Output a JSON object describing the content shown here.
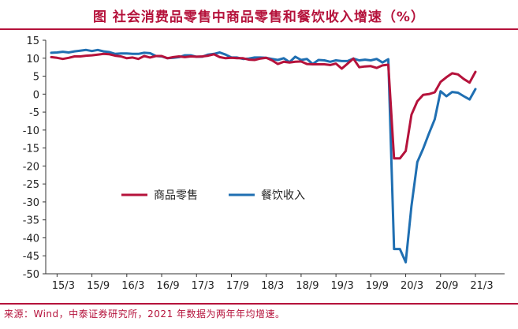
{
  "header": {
    "title": "图 社会消费品零售中商品零售和餐饮收入增速（%）"
  },
  "footer": {
    "source": "来源：Wind，中泰证券研究所，2021 年数据为两年年均增速。"
  },
  "colors": {
    "accent": "#b5123b",
    "series_goods": "#b5123b",
    "series_catering": "#1f6fb2",
    "axis": "#333333"
  },
  "chart_data": {
    "type": "line",
    "title": "图 社会消费品零售中商品零售和餐饮收入增速（%）",
    "xlabel": "",
    "ylabel": "",
    "x_tick_labels": [
      "15/3",
      "15/9",
      "16/3",
      "16/9",
      "17/3",
      "17/9",
      "18/3",
      "18/9",
      "19/3",
      "19/9",
      "20/3",
      "20/9",
      "21/3"
    ],
    "y_ticks": [
      15,
      10,
      5,
      0,
      -5,
      -10,
      -15,
      -20,
      -25,
      -30,
      -35,
      -40,
      -45,
      -50
    ],
    "ylim": [
      -50,
      15
    ],
    "grid": false,
    "legend": {
      "placement": "center-left",
      "entries": [
        "商品零售",
        "餐饮收入"
      ]
    },
    "x": [
      "15/2",
      "15/3",
      "15/4",
      "15/5",
      "15/6",
      "15/7",
      "15/8",
      "15/9",
      "15/10",
      "15/11",
      "15/12",
      "16/1",
      "16/2",
      "16/3",
      "16/4",
      "16/5",
      "16/6",
      "16/7",
      "16/8",
      "16/9",
      "16/10",
      "16/11",
      "16/12",
      "17/1",
      "17/2",
      "17/3",
      "17/4",
      "17/5",
      "17/6",
      "17/7",
      "17/8",
      "17/9",
      "17/10",
      "17/11",
      "17/12",
      "18/1",
      "18/2",
      "18/3",
      "18/4",
      "18/5",
      "18/6",
      "18/7",
      "18/8",
      "18/9",
      "18/10",
      "18/11",
      "18/12",
      "19/1",
      "19/2",
      "19/3",
      "19/4",
      "19/5",
      "19/6",
      "19/7",
      "19/8",
      "19/9",
      "19/10",
      "19/11",
      "19/12",
      "20/1",
      "20/2",
      "20/3",
      "20/4",
      "20/5",
      "20/6",
      "20/7",
      "20/8",
      "20/9",
      "20/10",
      "20/11",
      "20/12",
      "21/1",
      "21/2",
      "21/3"
    ],
    "series": [
      {
        "name": "商品零售",
        "values": [
          10.3,
          10.1,
          9.8,
          10.1,
          10.5,
          10.5,
          10.7,
          10.8,
          11.0,
          11.2,
          11.1,
          10.7,
          10.5,
          10.0,
          10.2,
          9.8,
          10.6,
          10.2,
          10.6,
          10.6,
          10.0,
          10.3,
          10.5,
          10.3,
          10.5,
          10.4,
          10.5,
          10.7,
          11.1,
          10.3,
          10.0,
          10.1,
          10.0,
          10.0,
          9.6,
          9.5,
          9.9,
          10.1,
          9.4,
          8.4,
          9.0,
          8.8,
          9.0,
          9.1,
          8.4,
          8.3,
          8.3,
          8.3,
          8.1,
          8.5,
          7.1,
          8.5,
          9.9,
          7.5,
          7.7,
          7.8,
          7.3,
          8.0,
          8.2,
          -17.9,
          -17.9,
          -15.8,
          -5.7,
          -2.0,
          -0.2,
          0.0,
          0.5,
          3.4,
          4.7,
          5.8,
          5.5,
          4.2,
          3.2,
          6.2
        ]
      },
      {
        "name": "餐饮收入",
        "values": [
          11.5,
          11.6,
          11.8,
          11.6,
          11.9,
          12.1,
          12.3,
          12.0,
          12.3,
          11.9,
          11.7,
          11.2,
          11.3,
          11.3,
          11.2,
          11.2,
          11.5,
          11.4,
          10.6,
          10.5,
          10.0,
          10.1,
          10.3,
          10.8,
          10.8,
          10.4,
          10.4,
          11.0,
          11.2,
          11.6,
          11.0,
          10.2,
          10.2,
          9.8,
          9.9,
          10.2,
          10.2,
          10.1,
          9.8,
          9.5,
          10.0,
          8.9,
          10.4,
          9.5,
          9.8,
          8.4,
          9.5,
          9.4,
          9.0,
          9.4,
          9.2,
          9.2,
          9.9,
          9.4,
          9.6,
          9.4,
          9.8,
          8.8,
          9.7,
          -43.1,
          -43.1,
          -46.8,
          -31.1,
          -18.9,
          -15.2,
          -11.0,
          -7.0,
          0.8,
          -0.6,
          0.6,
          0.4,
          -0.6,
          -1.5,
          1.4
        ]
      }
    ]
  }
}
